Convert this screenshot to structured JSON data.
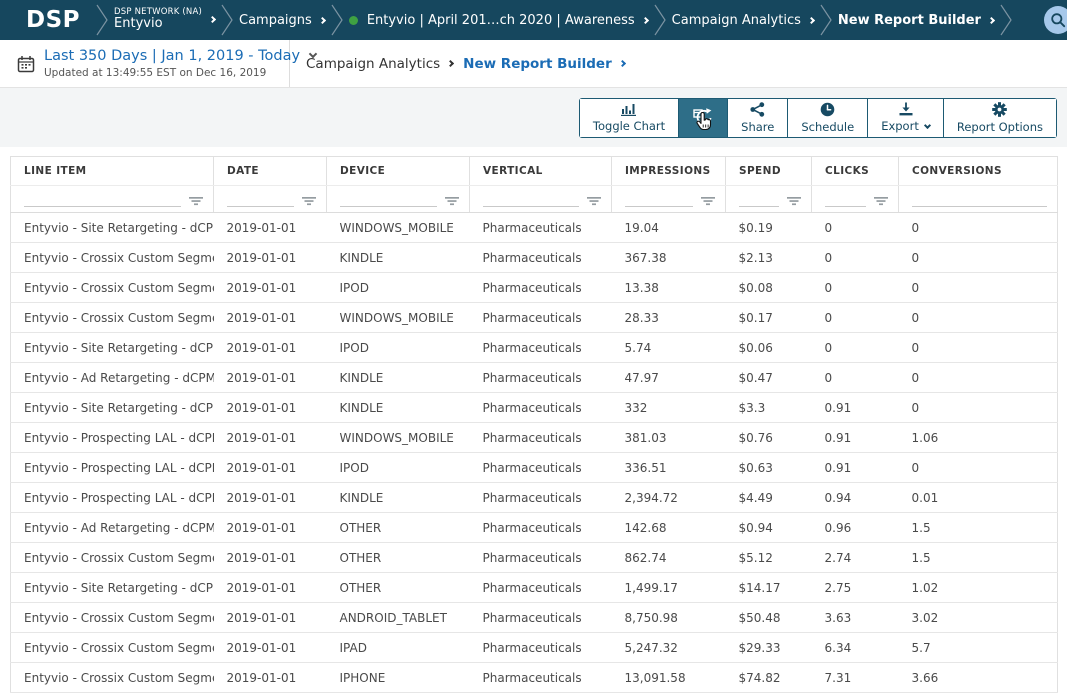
{
  "colors": {
    "topbar_bg": "#16475e",
    "accent_blue": "#1b6cb5",
    "button_teal": "#174a63",
    "active_button_bg": "#2e6e88",
    "status_green": "#3fa142",
    "toolbar_band_bg": "#f3f5f6"
  },
  "topbar": {
    "logo": "DSP",
    "network": {
      "label": "DSP NETWORK (NA)",
      "value": "Entyvio"
    },
    "crumb_campaigns": "Campaigns",
    "crumb_campaign": "Entyvio | April 201…ch 2020 | Awareness",
    "crumb_analytics": "Campaign Analytics",
    "crumb_report": "New Report Builder",
    "icons": {
      "menu": "hamburger-icon",
      "search": "search-icon",
      "help": "help-icon",
      "help_glyph": "?"
    }
  },
  "subheader": {
    "date_range": "Last 350 Days | Jan 1, 2019 - Today",
    "updated": "Updated at 13:49:55 EST on Dec 16, 2019",
    "crumb_analytics": "Campaign Analytics",
    "crumb_report": "New Report Builder",
    "icons": {
      "calendar": "calendar-icon",
      "expand": "chevron-down-icon"
    }
  },
  "toolbar": {
    "toggle_chart": "Toggle Chart",
    "share": "Share",
    "schedule": "Schedule",
    "export": "Export",
    "report_options": "Report Options",
    "icons": {
      "toggle_chart": "bar-chart-icon",
      "refresh": "refresh-icon",
      "share": "share-icon",
      "schedule": "clock-icon",
      "export": "download-icon",
      "report_options": "gear-icon",
      "cursor": "hand-cursor"
    }
  },
  "table": {
    "columns": [
      "LINE ITEM",
      "DATE",
      "DEVICE",
      "VERTICAL",
      "IMPRESSIONS",
      "SPEND",
      "CLICKS",
      "CONVERSIONS"
    ],
    "filter_icon": "filter-icon",
    "rows": [
      [
        "Entyvio - Site Retargeting - dCPM (La",
        "2019-01-01",
        "WINDOWS_MOBILE",
        "Pharmaceuticals",
        "19.04",
        "$0.19",
        "0",
        "0"
      ],
      [
        "Entyvio - Crossix Custom Segment B",
        "2019-01-01",
        "KINDLE",
        "Pharmaceuticals",
        "367.38",
        "$2.13",
        "0",
        "0"
      ],
      [
        "Entyvio - Crossix Custom Segment B",
        "2019-01-01",
        "IPOD",
        "Pharmaceuticals",
        "13.38",
        "$0.08",
        "0",
        "0"
      ],
      [
        "Entyvio - Crossix Custom Segment B",
        "2019-01-01",
        "WINDOWS_MOBILE",
        "Pharmaceuticals",
        "28.33",
        "$0.17",
        "0",
        "0"
      ],
      [
        "Entyvio - Site Retargeting - dCPM (La",
        "2019-01-01",
        "IPOD",
        "Pharmaceuticals",
        "5.74",
        "$0.06",
        "0",
        "0"
      ],
      [
        "Entyvio - Ad Retargeting - dCPM (Lan",
        "2019-01-01",
        "KINDLE",
        "Pharmaceuticals",
        "47.97",
        "$0.47",
        "0",
        "0"
      ],
      [
        "Entyvio - Site Retargeting - dCPM (La",
        "2019-01-01",
        "KINDLE",
        "Pharmaceuticals",
        "332",
        "$3.3",
        "0.91",
        "0"
      ],
      [
        "Entyvio - Prospecting LAL - dCPM (La",
        "2019-01-01",
        "WINDOWS_MOBILE",
        "Pharmaceuticals",
        "381.03",
        "$0.76",
        "0.91",
        "1.06"
      ],
      [
        "Entyvio - Prospecting LAL - dCPM (La",
        "2019-01-01",
        "IPOD",
        "Pharmaceuticals",
        "336.51",
        "$0.63",
        "0.91",
        "0"
      ],
      [
        "Entyvio - Prospecting LAL - dCPM (La",
        "2019-01-01",
        "KINDLE",
        "Pharmaceuticals",
        "2,394.72",
        "$4.49",
        "0.94",
        "0.01"
      ],
      [
        "Entyvio - Ad Retargeting - dCPM (Lan",
        "2019-01-01",
        "OTHER",
        "Pharmaceuticals",
        "142.68",
        "$0.94",
        "0.96",
        "1.5"
      ],
      [
        "Entyvio - Crossix Custom Segment B",
        "2019-01-01",
        "OTHER",
        "Pharmaceuticals",
        "862.74",
        "$5.12",
        "2.74",
        "1.5"
      ],
      [
        "Entyvio - Site Retargeting - dCPM (La",
        "2019-01-01",
        "OTHER",
        "Pharmaceuticals",
        "1,499.17",
        "$14.17",
        "2.75",
        "1.02"
      ],
      [
        "Entyvio - Crossix Custom Segment B",
        "2019-01-01",
        "ANDROID_TABLET",
        "Pharmaceuticals",
        "8,750.98",
        "$50.48",
        "3.63",
        "3.02"
      ],
      [
        "Entyvio - Crossix Custom Segment B",
        "2019-01-01",
        "IPAD",
        "Pharmaceuticals",
        "5,247.32",
        "$29.33",
        "6.34",
        "5.7"
      ],
      [
        "Entyvio - Crossix Custom Segment B",
        "2019-01-01",
        "IPHONE",
        "Pharmaceuticals",
        "13,091.58",
        "$74.82",
        "7.31",
        "3.66"
      ]
    ]
  }
}
